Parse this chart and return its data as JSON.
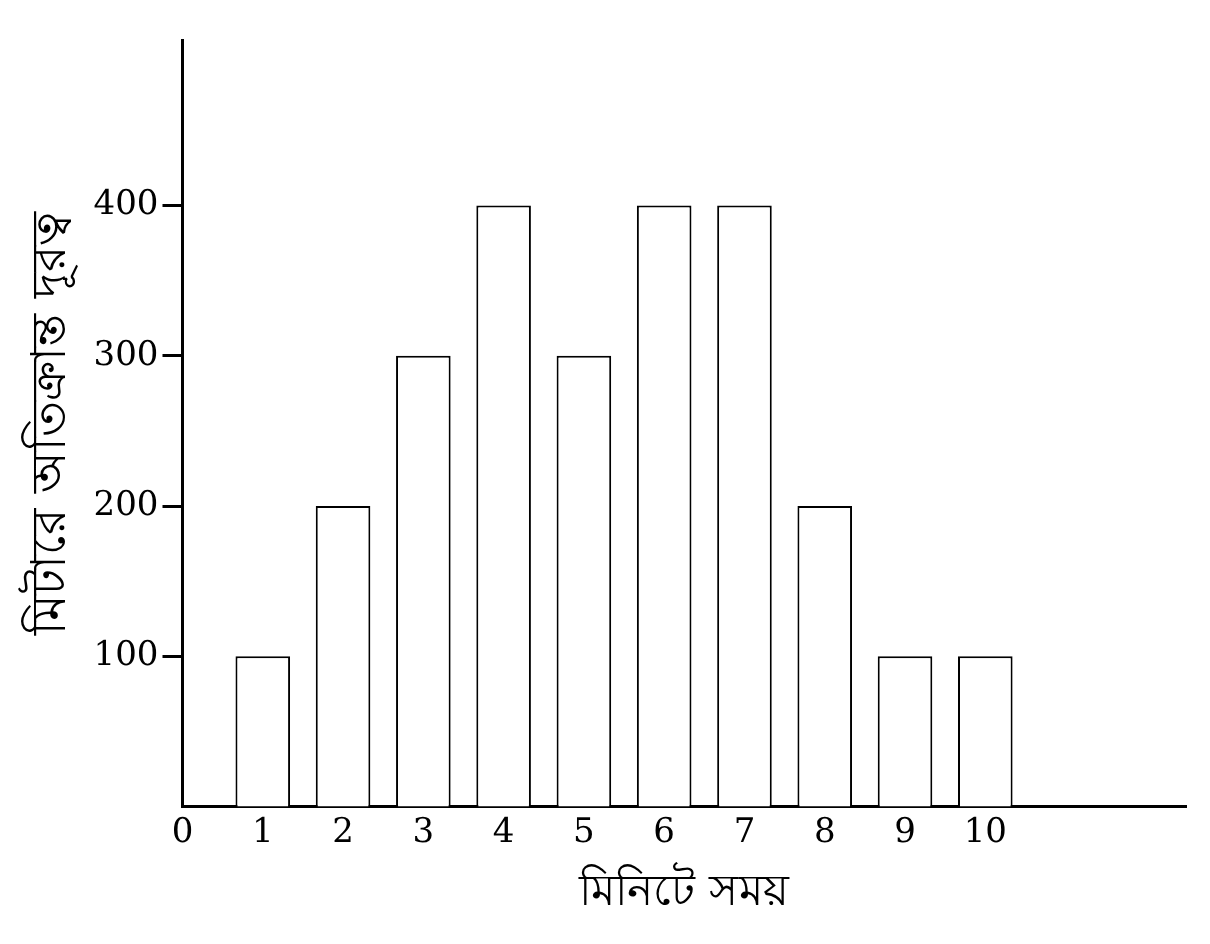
{
  "chart_data": {
    "type": "bar",
    "xlabel": "মিনিটে সময়",
    "ylabel": "মিটারে অতিক্রান্ত দূরত্ব",
    "x": [
      1,
      2,
      3,
      4,
      5,
      6,
      7,
      8,
      9,
      10
    ],
    "values": [
      100,
      200,
      300,
      400,
      300,
      400,
      400,
      200,
      100,
      100
    ],
    "color": "#ffffff",
    "xlim": [
      0,
      12.5
    ],
    "xticks": [
      0,
      1,
      2,
      3,
      4,
      5,
      6,
      7,
      8,
      9,
      10
    ],
    "ylim": [
      0,
      510
    ],
    "yticks": [
      100,
      200,
      300,
      400
    ],
    "grid": false,
    "legend": false
  }
}
